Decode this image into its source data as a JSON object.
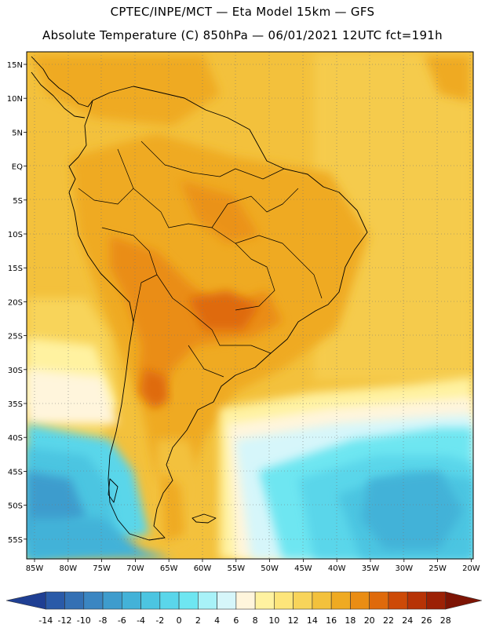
{
  "header": {
    "line1": "CPTEC/INPE/MCT —  Eta Model 15km — GFS",
    "line2": "Absolute Temperature (C) 850hPa — 06/01/2021 12UTC fct=191h"
  },
  "map": {
    "lat_labels": [
      "15N",
      "10N",
      "5N",
      "EQ",
      "5S",
      "10S",
      "15S",
      "20S",
      "25S",
      "30S",
      "35S",
      "40S",
      "45S",
      "50S",
      "55S"
    ],
    "lon_labels": [
      "85W",
      "80W",
      "75W",
      "70W",
      "65W",
      "60W",
      "55W",
      "50W",
      "45W",
      "40W",
      "35W",
      "30W",
      "25W",
      "20W"
    ]
  },
  "colorbar": {
    "labels": [
      "-14",
      "-12",
      "-10",
      "-8",
      "-6",
      "-4",
      "-2",
      "0",
      "2",
      "4",
      "6",
      "8",
      "10",
      "12",
      "14",
      "16",
      "18",
      "20",
      "22",
      "24",
      "26",
      "28"
    ],
    "colors": [
      "#1f3f93",
      "#2a5aa8",
      "#3470b4",
      "#3b86c2",
      "#3e9ccd",
      "#43b2d8",
      "#4cc5e1",
      "#5ad6ea",
      "#6ee6f1",
      "#a8f2f8",
      "#d6f6fa",
      "#fff5dc",
      "#fff2a0",
      "#fde57a",
      "#f8d45a",
      "#f3c13c",
      "#efaa22",
      "#ea8d14",
      "#df6a0b",
      "#cd4a07",
      "#b73306",
      "#9c2105",
      "#7d1404"
    ]
  }
}
